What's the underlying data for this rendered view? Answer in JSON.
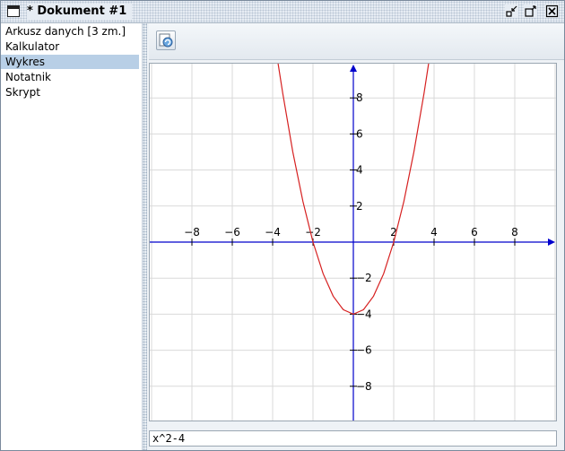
{
  "window": {
    "title": "* Dokument #1"
  },
  "sidebar": {
    "items": [
      {
        "label": "Arkusz danych [3 zm.]"
      },
      {
        "label": "Kalkulator"
      },
      {
        "label": "Wykres"
      },
      {
        "label": "Notatnik"
      },
      {
        "label": "Skrypt"
      }
    ],
    "selected": "Wykres",
    "selected_color": "#b8cfe6"
  },
  "toolbar": {
    "buttons": [
      {
        "icon": "refresh-plot-icon"
      }
    ]
  },
  "plot": {
    "expression": "x^2-4",
    "curve_color": "#d62020",
    "axis_color": "#0000cc",
    "grid_color": "#d9d9d9"
  },
  "chart_data": {
    "type": "line",
    "function": "x^2-4",
    "title": "",
    "xlabel": "",
    "ylabel": "",
    "xlim": [
      -10,
      10
    ],
    "ylim": [
      -10,
      10
    ],
    "x_ticks": [
      -8,
      -6,
      -4,
      -2,
      2,
      4,
      6,
      8
    ],
    "y_ticks": [
      8,
      6,
      4,
      2,
      -2,
      -4,
      -6,
      -8
    ],
    "x_tick_labels": [
      "−8",
      "−6",
      "−4",
      "−2",
      "2",
      "4",
      "6",
      "8"
    ],
    "y_tick_labels": [
      "8",
      "6",
      "4",
      "2",
      "−2",
      "−4",
      "−6",
      "−8"
    ],
    "grid": true,
    "series": [
      {
        "x": [
          -3.75,
          -3.5,
          -3,
          -2.5,
          -2,
          -1.5,
          -1,
          -0.5,
          0,
          0.5,
          1,
          1.5,
          2,
          2.5,
          3,
          3.5,
          3.75
        ],
        "y": [
          10.06,
          8.25,
          5,
          2.25,
          0,
          -1.75,
          -3,
          -3.75,
          -4,
          -3.75,
          -3,
          -1.75,
          0,
          2.25,
          5,
          8.25,
          10.06
        ],
        "color": "#d62020"
      }
    ]
  }
}
